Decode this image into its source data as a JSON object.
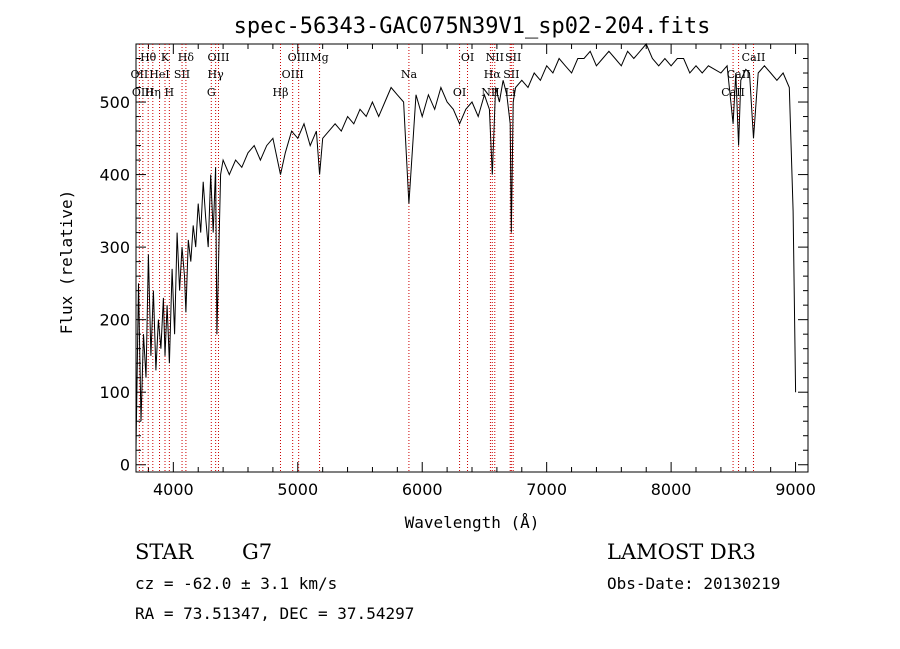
{
  "chart_data": {
    "type": "line",
    "title": "spec-56343-GAC075N39V1_sp02-204.fits",
    "xlabel": "Wavelength (Å)",
    "ylabel": "Flux (relative)",
    "xlim": [
      3700,
      9100
    ],
    "ylim": [
      -10,
      580
    ],
    "x_ticks": [
      4000,
      5000,
      6000,
      7000,
      8000,
      9000
    ],
    "y_ticks": [
      0,
      100,
      200,
      300,
      400,
      500
    ],
    "grid": false,
    "series": [
      {
        "name": "flux",
        "x": [
          3700,
          3720,
          3740,
          3760,
          3780,
          3800,
          3820,
          3840,
          3860,
          3880,
          3900,
          3920,
          3933,
          3950,
          3968,
          3990,
          4010,
          4030,
          4050,
          4070,
          4090,
          4101,
          4120,
          4140,
          4160,
          4180,
          4200,
          4220,
          4240,
          4260,
          4280,
          4300,
          4320,
          4340,
          4350,
          4380,
          4400,
          4450,
          4500,
          4550,
          4600,
          4650,
          4700,
          4750,
          4800,
          4861,
          4900,
          4950,
          5000,
          5050,
          5100,
          5150,
          5175,
          5200,
          5250,
          5300,
          5350,
          5400,
          5450,
          5500,
          5550,
          5600,
          5650,
          5700,
          5750,
          5800,
          5850,
          5893,
          5950,
          6000,
          6050,
          6100,
          6150,
          6200,
          6250,
          6300,
          6350,
          6400,
          6450,
          6500,
          6540,
          6563,
          6590,
          6620,
          6650,
          6680,
          6707,
          6716,
          6731,
          6750,
          6800,
          6850,
          6900,
          6950,
          7000,
          7050,
          7100,
          7150,
          7200,
          7250,
          7300,
          7350,
          7400,
          7450,
          7500,
          7550,
          7600,
          7650,
          7700,
          7750,
          7800,
          7850,
          7900,
          7950,
          8000,
          8050,
          8100,
          8150,
          8200,
          8250,
          8300,
          8350,
          8400,
          8450,
          8498,
          8520,
          8542,
          8560,
          8600,
          8630,
          8662,
          8700,
          8750,
          8800,
          8850,
          8900,
          8950,
          8980,
          9000
        ],
        "values": [
          20,
          250,
          60,
          180,
          120,
          290,
          150,
          240,
          130,
          200,
          160,
          230,
          150,
          220,
          140,
          270,
          180,
          320,
          240,
          300,
          260,
          210,
          310,
          280,
          330,
          300,
          360,
          320,
          390,
          340,
          300,
          400,
          320,
          410,
          180,
          400,
          420,
          400,
          420,
          410,
          430,
          440,
          420,
          440,
          450,
          400,
          430,
          460,
          450,
          470,
          440,
          460,
          400,
          450,
          460,
          470,
          460,
          480,
          470,
          490,
          480,
          500,
          480,
          500,
          520,
          510,
          500,
          360,
          510,
          480,
          510,
          490,
          520,
          500,
          490,
          470,
          490,
          500,
          480,
          510,
          490,
          400,
          520,
          500,
          530,
          510,
          470,
          320,
          500,
          520,
          530,
          520,
          540,
          530,
          550,
          540,
          560,
          550,
          540,
          560,
          560,
          570,
          550,
          560,
          570,
          560,
          550,
          570,
          560,
          570,
          580,
          560,
          550,
          560,
          550,
          560,
          560,
          540,
          550,
          540,
          550,
          545,
          540,
          550,
          470,
          540,
          440,
          530,
          545,
          540,
          450,
          540,
          550,
          540,
          530,
          540,
          520,
          350,
          100
        ]
      }
    ],
    "lines": [
      {
        "label": "Hθ",
        "x": 3798
      },
      {
        "label": "OII",
        "x": 3727
      },
      {
        "label": "OIII",
        "x": 3755
      },
      {
        "label": "K",
        "x": 3933
      },
      {
        "label": "HeI",
        "x": 3889
      },
      {
        "label": "Hη",
        "x": 3835
      },
      {
        "label": "Hδ",
        "x": 4101
      },
      {
        "label": "SII",
        "x": 4070
      },
      {
        "label": "H",
        "x": 3968
      },
      {
        "label": "OIII",
        "x": 4363
      },
      {
        "label": "Hγ",
        "x": 4340
      },
      {
        "label": "G",
        "x": 4305
      },
      {
        "label": "OIII",
        "x": 5007
      },
      {
        "label": "OIII",
        "x": 4959
      },
      {
        "label": "Hβ",
        "x": 4861
      },
      {
        "label": "Mg",
        "x": 5175
      },
      {
        "label": "Na",
        "x": 5893
      },
      {
        "label": "OI",
        "x": 6300
      },
      {
        "label": "OI",
        "x": 6364
      },
      {
        "label": "Hα",
        "x": 6563
      },
      {
        "label": "NII",
        "x": 6548
      },
      {
        "label": "NII",
        "x": 6583
      },
      {
        "label": "SII",
        "x": 6716
      },
      {
        "label": "Li",
        "x": 6707
      },
      {
        "label": "SII",
        "x": 6731
      },
      {
        "label": "CaII",
        "x": 8542
      },
      {
        "label": "CaII",
        "x": 8498
      },
      {
        "label": "CaII",
        "x": 8662
      }
    ]
  },
  "info": {
    "object_type": "STAR",
    "subclass": "G7",
    "survey": "LAMOST DR3",
    "redshift": "cz = -62.0 ± 3.1 km/s",
    "obs_date": "Obs-Date: 20130219",
    "coords": "RA =  73.51347, DEC =  37.54297"
  }
}
